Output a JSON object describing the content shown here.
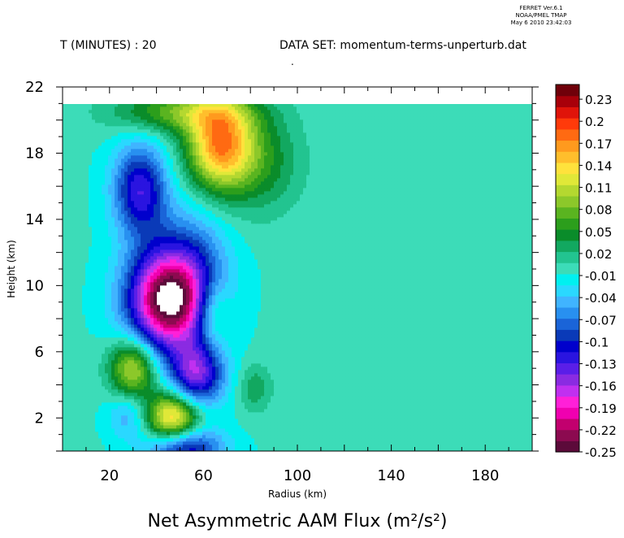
{
  "header": {
    "ferret_line1": "FERRET Ver.6.1",
    "ferret_line2": "NOAA/PMEL TMAP",
    "ferret_line3": "May 6 2010 23:42:03",
    "time_label": "T (MINUTES) : 20",
    "dataset_label": "DATA SET: momentum-terms-unperturb.dat",
    "footer_mark": "."
  },
  "chart_data": {
    "type": "heatmap",
    "title": "Net Asymmetric AAM Flux (m²/s²)",
    "xlabel": "Radius (km)",
    "ylabel": "Height (km)",
    "xlim": [
      0,
      200
    ],
    "ylim": [
      0,
      22
    ],
    "x_ticks": [
      20,
      60,
      100,
      140,
      180
    ],
    "y_ticks": [
      2,
      6,
      10,
      14,
      18,
      22
    ],
    "data_top_km": 21,
    "grid": false,
    "colorbar": {
      "placement": "right",
      "tick_labels": [
        "0.23",
        "0.2",
        "0.17",
        "0.14",
        "0.11",
        "0.08",
        "0.05",
        "0.02",
        "-0.01",
        "-0.04",
        "-0.07",
        "-0.1",
        "-0.13",
        "-0.16",
        "-0.19",
        "-0.22",
        "-0.25"
      ],
      "min": -0.25,
      "max": 0.25,
      "colors": [
        "#5c0a3a",
        "#8c0a50",
        "#c2006e",
        "#f000b0",
        "#ff20d8",
        "#c030f0",
        "#8a2be2",
        "#5a1ee8",
        "#2a14e0",
        "#0000cc",
        "#0a3ab8",
        "#1a64d8",
        "#2890f0",
        "#40b4ff",
        "#2ad8ff",
        "#00f0f0",
        "#3cdcb8",
        "#22c490",
        "#12a860",
        "#0a8c2a",
        "#2c9e1c",
        "#5ab420",
        "#8cc82a",
        "#b4d830",
        "#e0e838",
        "#ffe23c",
        "#ffbe2c",
        "#ff9a1e",
        "#ff6a12",
        "#ff3a0a",
        "#e0140a",
        "#a8000a",
        "#70000a"
      ]
    },
    "features": [
      {
        "x": 45,
        "y": 9.0,
        "sx": 12,
        "sy": 2.1,
        "value": -0.24
      },
      {
        "x": 55,
        "y": 11.5,
        "sx": 14,
        "sy": 2.4,
        "value": -0.06
      },
      {
        "x": 33,
        "y": 15.8,
        "sx": 8,
        "sy": 1.9,
        "value": -0.12
      },
      {
        "x": 57,
        "y": 4.6,
        "sx": 8,
        "sy": 1.4,
        "value": -0.14
      },
      {
        "x": 52,
        "y": 0.2,
        "sx": 11,
        "sy": 0.9,
        "value": -0.12
      },
      {
        "x": 28,
        "y": 2.2,
        "sx": 6,
        "sy": 1.0,
        "value": -0.05
      },
      {
        "x": 67,
        "y": 18.5,
        "sx": 10,
        "sy": 1.9,
        "value": 0.17
      },
      {
        "x": 50,
        "y": 20.5,
        "sx": 20,
        "sy": 0.9,
        "value": 0.08
      },
      {
        "x": 85,
        "y": 17.5,
        "sx": 12,
        "sy": 2.2,
        "value": 0.05
      },
      {
        "x": 30,
        "y": 5.0,
        "sx": 7,
        "sy": 1.3,
        "value": 0.12
      },
      {
        "x": 47,
        "y": 2.0,
        "sx": 8,
        "sy": 1.1,
        "value": 0.16
      },
      {
        "x": 64,
        "y": 8.4,
        "sx": 5,
        "sy": 1.4,
        "value": 0.06
      },
      {
        "x": 82,
        "y": 3.8,
        "sx": 5,
        "sy": 1.0,
        "value": 0.04
      },
      {
        "x": 72,
        "y": 12.0,
        "sx": 10,
        "sy": 2.5,
        "value": 0.01
      }
    ]
  }
}
